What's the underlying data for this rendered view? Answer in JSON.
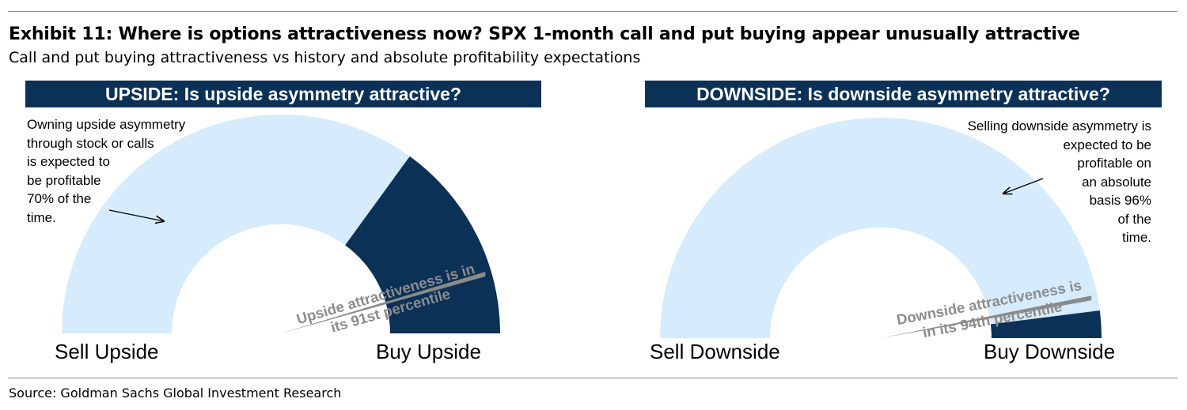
{
  "title": "Exhibit 11: Where is options attractiveness now? SPX 1-month call and put buying appear unusually attractive",
  "subtitle": "Call and put buying attractiveness vs history and absolute profitability expectations",
  "source": "Source: Goldman Sachs Global Investment Research",
  "colors": {
    "navy": "#0b3157",
    "light_blue": "#d6ebfb",
    "needle": "#8a8a8a",
    "percentile_text": "#8c8c8c"
  },
  "chart_data": [
    {
      "type": "gauge",
      "title": "UPSIDE: Is upside asymmetry attractive?",
      "scale_min_label": "Sell Upside",
      "scale_max_label": "Buy Upside",
      "profitability_pct": 70,
      "profitability_note": [
        "Owning upside asymmetry",
        "through stock or calls",
        "is expected to",
        "be profitable",
        "70% of the",
        "time."
      ],
      "percentile": 91,
      "percentile_label": [
        "Upside attractiveness is in",
        "its 91st percentile"
      ]
    },
    {
      "type": "gauge",
      "title": "DOWNSIDE: Is downside asymmetry attractive?",
      "scale_min_label": "Sell Downside",
      "scale_max_label": "Buy Downside",
      "profitability_pct": 96,
      "profitability_note": [
        "Selling downside asymmetry is",
        "expected to be",
        "profitable on",
        "an absolute",
        "basis 96%",
        "of the",
        "time."
      ],
      "percentile": 94,
      "percentile_label": [
        "Downside attractiveness is",
        "in its 94th percentile"
      ]
    }
  ]
}
